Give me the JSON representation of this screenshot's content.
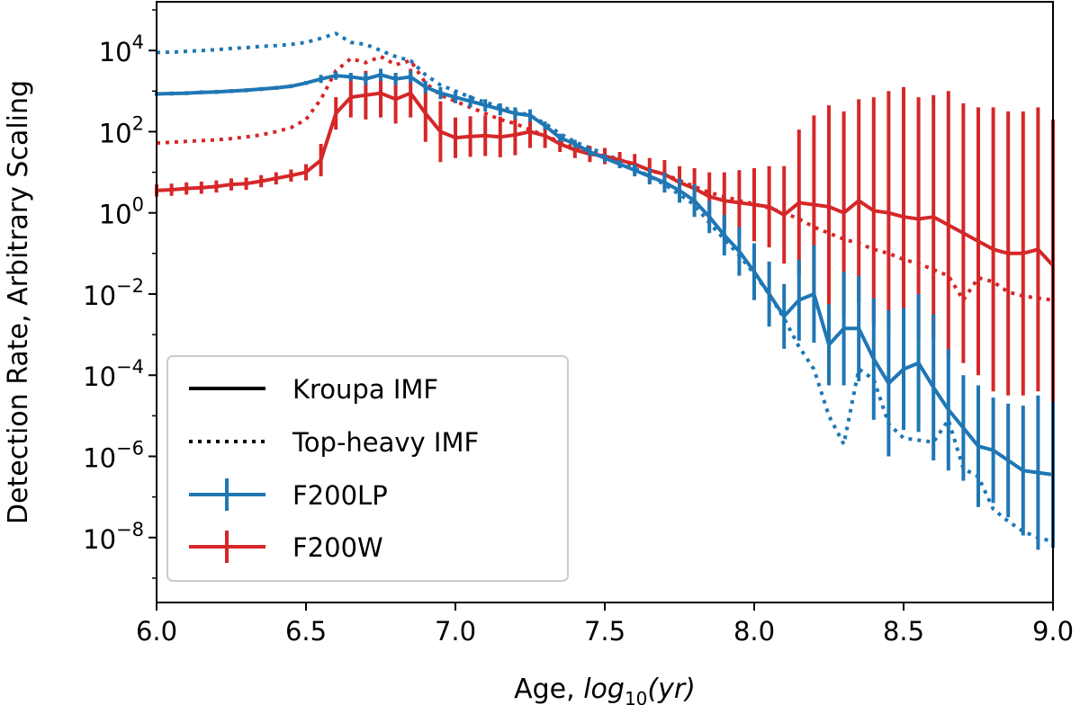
{
  "chart_data": {
    "type": "line",
    "yscale": "log",
    "xlabel_prefix": "Age, ",
    "xlabel_math": "log",
    "xlabel_sub": "10",
    "xlabel_suffix": "(yr)",
    "ylabel": "Detection Rate, Arbitrary Scaling",
    "xlim": [
      6.0,
      9.0
    ],
    "ylim_log10": [
      -9.6,
      5.2
    ],
    "xticks": [
      6.0,
      6.5,
      7.0,
      7.5,
      8.0,
      8.5,
      9.0
    ],
    "xtick_labels": [
      "6.0",
      "6.5",
      "7.0",
      "7.5",
      "8.0",
      "8.5",
      "9.0"
    ],
    "yticks_exp": [
      4,
      2,
      0,
      -2,
      -4,
      -6,
      -8
    ],
    "ytick_labels": [
      {
        "base": "10",
        "exp": "4"
      },
      {
        "base": "10",
        "exp": "2"
      },
      {
        "base": "10",
        "exp": "0"
      },
      {
        "base": "10",
        "exp": "−2"
      },
      {
        "base": "10",
        "exp": "−4"
      },
      {
        "base": "10",
        "exp": "−6"
      },
      {
        "base": "10",
        "exp": "−8"
      }
    ],
    "legend": {
      "location": "lower-left",
      "entries": [
        {
          "label": "Kroupa IMF",
          "style": "solid",
          "color": "#000000"
        },
        {
          "label": "Top-heavy IMF",
          "style": "dotted",
          "color": "#000000"
        },
        {
          "label": "F200LP",
          "style": "errorbar",
          "color": "#1f77b4"
        },
        {
          "label": "F200W",
          "style": "errorbar",
          "color": "#d62728"
        }
      ]
    },
    "series": [
      {
        "name": "F200LP top-heavy",
        "filter": "F200LP",
        "imf": "Top-heavy IMF",
        "color": "#1f77b4",
        "dash": "dotted",
        "x": [
          6.0,
          6.05,
          6.1,
          6.15,
          6.2,
          6.25,
          6.3,
          6.35,
          6.4,
          6.45,
          6.5,
          6.55,
          6.6,
          6.65,
          6.7,
          6.75,
          6.8,
          6.85,
          6.9,
          6.95,
          7.0,
          7.05,
          7.1,
          7.15,
          7.2,
          7.25,
          7.3,
          7.35,
          7.4,
          7.45,
          7.5,
          7.55,
          7.6,
          7.65,
          7.7,
          7.75,
          7.8,
          7.85,
          7.9,
          7.95,
          8.0,
          8.05,
          8.1,
          8.15,
          8.2,
          8.25,
          8.3,
          8.35,
          8.4,
          8.45,
          8.5,
          8.55,
          8.6,
          8.65,
          8.7,
          8.75,
          8.8,
          8.85,
          8.9,
          8.95,
          9.0
        ],
        "log10y": [
          3.95,
          3.96,
          3.98,
          4.0,
          4.02,
          4.05,
          4.07,
          4.1,
          4.12,
          4.15,
          4.2,
          4.3,
          4.42,
          4.2,
          4.15,
          4.0,
          3.85,
          3.75,
          3.4,
          3.15,
          3.0,
          2.85,
          2.72,
          2.62,
          2.5,
          2.4,
          2.2,
          1.95,
          1.75,
          1.6,
          1.45,
          1.3,
          1.1,
          0.9,
          0.7,
          0.45,
          0.2,
          -0.25,
          -0.65,
          -1.05,
          -1.5,
          -2.0,
          -2.6,
          -3.3,
          -3.85,
          -5.0,
          -5.7,
          -3.85,
          -4.1,
          -5.2,
          -5.55,
          -5.6,
          -5.65,
          -5.1,
          -6.3,
          -6.5,
          -7.3,
          -7.6,
          -7.85,
          -8.0,
          -8.1
        ],
        "err_log10": [
          0,
          0,
          0,
          0,
          0,
          0,
          0,
          0,
          0,
          0,
          0,
          0,
          0,
          0,
          0,
          0,
          0,
          0,
          0,
          0,
          0,
          0,
          0,
          0,
          0,
          0,
          0,
          0,
          0,
          0,
          0,
          0,
          0,
          0,
          0,
          0,
          0,
          0,
          0,
          0,
          0,
          0,
          0,
          0,
          0,
          0,
          0,
          0,
          0,
          0,
          0,
          0,
          0,
          0,
          0,
          0,
          0,
          0,
          0,
          0,
          0
        ]
      },
      {
        "name": "F200W top-heavy",
        "filter": "F200W",
        "imf": "Top-heavy IMF",
        "color": "#d62728",
        "dash": "dotted",
        "x": [
          6.0,
          6.05,
          6.1,
          6.15,
          6.2,
          6.25,
          6.3,
          6.35,
          6.4,
          6.45,
          6.5,
          6.55,
          6.6,
          6.65,
          6.7,
          6.75,
          6.8,
          6.85,
          6.9,
          6.95,
          7.0,
          7.05,
          7.1,
          7.15,
          7.2,
          7.25,
          7.3,
          7.35,
          7.4,
          7.45,
          7.5,
          7.55,
          7.6,
          7.65,
          7.7,
          7.75,
          7.8,
          7.85,
          7.9,
          7.95,
          8.0,
          8.05,
          8.1,
          8.15,
          8.2,
          8.25,
          8.3,
          8.35,
          8.4,
          8.45,
          8.5,
          8.55,
          8.6,
          8.65,
          8.7,
          8.75,
          8.8,
          8.85,
          8.9,
          8.95,
          9.0
        ],
        "log10y": [
          1.72,
          1.74,
          1.76,
          1.78,
          1.8,
          1.83,
          1.87,
          1.92,
          2.0,
          2.1,
          2.3,
          2.8,
          3.5,
          3.8,
          3.7,
          3.85,
          3.65,
          3.75,
          3.2,
          2.9,
          2.75,
          2.6,
          2.45,
          2.3,
          2.2,
          2.05,
          1.9,
          1.75,
          1.6,
          1.5,
          1.4,
          1.3,
          1.2,
          1.05,
          0.95,
          0.8,
          0.65,
          0.5,
          0.4,
          0.3,
          0.22,
          0.12,
          0.0,
          -0.15,
          -0.35,
          -0.5,
          -0.65,
          -0.75,
          -0.9,
          -1.0,
          -1.15,
          -1.25,
          -1.4,
          -1.55,
          -2.15,
          -1.6,
          -1.7,
          -1.95,
          -2.05,
          -2.1,
          -2.15
        ],
        "err_log10": [
          0,
          0,
          0,
          0,
          0,
          0,
          0,
          0,
          0,
          0,
          0,
          0,
          0,
          0,
          0,
          0,
          0,
          0,
          0,
          0,
          0,
          0,
          0,
          0,
          0,
          0,
          0,
          0,
          0,
          0,
          0,
          0,
          0,
          0,
          0,
          0,
          0,
          0,
          0,
          0,
          0,
          0,
          0,
          0,
          0,
          0,
          0,
          0,
          0,
          0,
          0,
          0,
          0,
          0,
          0,
          0,
          0,
          0,
          0,
          0,
          0
        ]
      },
      {
        "name": "F200W Kroupa",
        "filter": "F200W",
        "imf": "Kroupa IMF",
        "color": "#d62728",
        "dash": "solid",
        "x": [
          6.0,
          6.05,
          6.1,
          6.15,
          6.2,
          6.25,
          6.3,
          6.35,
          6.4,
          6.45,
          6.5,
          6.55,
          6.6,
          6.65,
          6.7,
          6.75,
          6.8,
          6.85,
          6.9,
          6.95,
          7.0,
          7.05,
          7.1,
          7.15,
          7.2,
          7.25,
          7.3,
          7.35,
          7.4,
          7.45,
          7.5,
          7.55,
          7.6,
          7.65,
          7.7,
          7.75,
          7.8,
          7.85,
          7.9,
          7.95,
          8.0,
          8.05,
          8.1,
          8.15,
          8.2,
          8.25,
          8.3,
          8.35,
          8.4,
          8.45,
          8.5,
          8.55,
          8.6,
          8.65,
          8.7,
          8.75,
          8.8,
          8.85,
          8.9,
          8.95,
          9.0
        ],
        "log10y": [
          0.55,
          0.57,
          0.6,
          0.62,
          0.65,
          0.7,
          0.72,
          0.78,
          0.85,
          0.92,
          1.0,
          1.3,
          2.45,
          2.85,
          2.9,
          2.95,
          2.8,
          2.95,
          2.45,
          2.0,
          1.85,
          1.88,
          1.9,
          1.87,
          1.92,
          2.0,
          1.9,
          1.7,
          1.55,
          1.45,
          1.4,
          1.3,
          1.2,
          1.05,
          0.95,
          0.75,
          0.6,
          0.4,
          0.3,
          0.25,
          0.2,
          0.15,
          -0.05,
          0.25,
          0.2,
          0.15,
          0.0,
          0.3,
          0.05,
          0.0,
          -0.1,
          -0.15,
          -0.1,
          -0.3,
          -0.5,
          -0.7,
          -0.9,
          -1.0,
          -1.0,
          -0.9,
          -1.3
        ],
        "err_log10": [
          0.15,
          0.15,
          0.15,
          0.15,
          0.15,
          0.15,
          0.15,
          0.15,
          0.15,
          0.15,
          0.2,
          0.4,
          0.4,
          0.5,
          0.6,
          0.6,
          0.6,
          0.6,
          0.7,
          0.75,
          0.5,
          0.5,
          0.5,
          0.5,
          0.5,
          0.4,
          0.3,
          0.2,
          0.2,
          0.2,
          0.2,
          0.2,
          0.25,
          0.3,
          0.35,
          0.4,
          0.5,
          0.6,
          0.7,
          0.8,
          0.9,
          1.0,
          1.2,
          1.8,
          2.2,
          2.5,
          2.5,
          2.5,
          2.8,
          3.0,
          3.2,
          3.0,
          3.0,
          3.3,
          3.2,
          3.3,
          3.5,
          3.5,
          3.5,
          3.5,
          3.6
        ]
      },
      {
        "name": "F200LP Kroupa",
        "filter": "F200LP",
        "imf": "Kroupa IMF",
        "color": "#1f77b4",
        "dash": "solid",
        "x": [
          6.0,
          6.05,
          6.1,
          6.15,
          6.2,
          6.25,
          6.3,
          6.35,
          6.4,
          6.45,
          6.5,
          6.55,
          6.6,
          6.65,
          6.7,
          6.75,
          6.8,
          6.85,
          6.9,
          6.95,
          7.0,
          7.05,
          7.1,
          7.15,
          7.2,
          7.25,
          7.3,
          7.35,
          7.4,
          7.45,
          7.5,
          7.55,
          7.6,
          7.65,
          7.7,
          7.75,
          7.8,
          7.85,
          7.9,
          7.95,
          8.0,
          8.05,
          8.1,
          8.15,
          8.2,
          8.25,
          8.3,
          8.35,
          8.4,
          8.45,
          8.5,
          8.55,
          8.6,
          8.65,
          8.7,
          8.75,
          8.8,
          8.85,
          8.9,
          8.95,
          9.0
        ],
        "log10y": [
          2.93,
          2.94,
          2.95,
          2.97,
          2.98,
          3.0,
          3.02,
          3.05,
          3.08,
          3.12,
          3.2,
          3.3,
          3.38,
          3.35,
          3.3,
          3.4,
          3.3,
          3.35,
          3.1,
          2.95,
          2.85,
          2.75,
          2.65,
          2.55,
          2.45,
          2.4,
          2.15,
          1.85,
          1.7,
          1.5,
          1.35,
          1.2,
          1.05,
          0.9,
          0.75,
          0.55,
          0.3,
          -0.1,
          -0.55,
          -0.95,
          -1.45,
          -2.0,
          -2.55,
          -2.15,
          -2.0,
          -3.25,
          -2.85,
          -2.85,
          -3.6,
          -4.2,
          -3.85,
          -3.7,
          -4.3,
          -4.85,
          -5.3,
          -5.75,
          -5.85,
          -6.1,
          -6.35,
          -6.4,
          -6.45
        ],
        "err_log10": [
          0.05,
          0.05,
          0.05,
          0.05,
          0.05,
          0.05,
          0.05,
          0.05,
          0.05,
          0.05,
          0.05,
          0.1,
          0.1,
          0.1,
          0.15,
          0.15,
          0.15,
          0.15,
          0.15,
          0.15,
          0.15,
          0.15,
          0.15,
          0.15,
          0.15,
          0.15,
          0.1,
          0.1,
          0.1,
          0.1,
          0.1,
          0.1,
          0.15,
          0.2,
          0.25,
          0.3,
          0.4,
          0.4,
          0.5,
          0.6,
          0.7,
          0.8,
          0.8,
          1.0,
          1.2,
          1.0,
          1.4,
          1.3,
          1.5,
          1.8,
          1.5,
          1.7,
          1.8,
          1.5,
          1.3,
          1.5,
          1.3,
          1.4,
          1.6,
          1.9,
          1.8
        ]
      }
    ]
  }
}
